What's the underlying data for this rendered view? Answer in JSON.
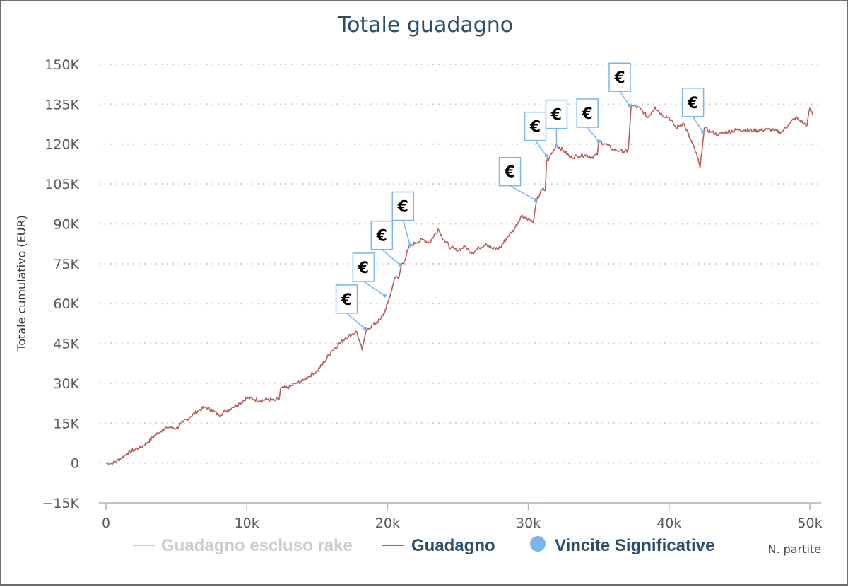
{
  "chart_data": {
    "type": "line",
    "title": "Totale guadagno",
    "xlabel": "N. partite",
    "ylabel": "Totale cumulativo (EUR)",
    "xlim": [
      -500,
      50300
    ],
    "ylim": [
      -15000,
      150000
    ],
    "x_ticks": [
      0,
      10000,
      20000,
      30000,
      40000,
      50000
    ],
    "x_tick_labels": [
      "0",
      "10k",
      "20k",
      "30k",
      "40k",
      "50k"
    ],
    "y_ticks": [
      -15000,
      0,
      15000,
      30000,
      45000,
      60000,
      75000,
      90000,
      105000,
      120000,
      135000,
      150000
    ],
    "y_tick_labels": [
      "−15K",
      "0",
      "15K",
      "30K",
      "45K",
      "60K",
      "75K",
      "90K",
      "105K",
      "120K",
      "135K",
      "150K"
    ],
    "grid": "horizontal dotted",
    "legend_position": "bottom",
    "series": [
      {
        "name": "Guadagno escluso rake",
        "color": "#cccccc",
        "visible": false,
        "x": [],
        "y": []
      },
      {
        "name": "Guadagno",
        "color": "#b85c5c",
        "x": [
          0,
          500,
          1000,
          1500,
          2000,
          2500,
          3000,
          3500,
          4000,
          4500,
          5000,
          5500,
          6000,
          6500,
          7000,
          7500,
          8000,
          8500,
          9000,
          9500,
          10000,
          10500,
          11000,
          11500,
          12000,
          12300,
          12400,
          13000,
          13500,
          14000,
          14500,
          15000,
          15500,
          16000,
          16500,
          17000,
          17500,
          17800,
          18000,
          18200,
          18400,
          18600,
          19000,
          19500,
          19900,
          20000,
          20300,
          20500,
          20800,
          21000,
          21200,
          21500,
          22000,
          22500,
          23000,
          23600,
          24000,
          24500,
          25000,
          25500,
          26000,
          26500,
          27000,
          27500,
          28000,
          28500,
          29000,
          29500,
          30000,
          30300,
          30400,
          30600,
          31000,
          31200,
          31300,
          31500,
          32000,
          32500,
          33000,
          33500,
          34000,
          34500,
          34900,
          35000,
          35500,
          36000,
          36500,
          37000,
          37100,
          37300,
          37500,
          38000,
          38500,
          39000,
          39500,
          40000,
          40500,
          41000,
          41500,
          42000,
          42200,
          42400,
          42500,
          43000,
          43500,
          44000,
          45000,
          46000,
          47000,
          47500,
          48000,
          48500,
          49000,
          49500,
          49800,
          50000,
          50200
        ],
        "y": [
          0,
          0,
          1500,
          3500,
          5000,
          6000,
          8000,
          10500,
          12500,
          13500,
          13000,
          15500,
          17500,
          19500,
          21000,
          20000,
          18000,
          19500,
          21000,
          22500,
          24500,
          24000,
          23500,
          24000,
          23500,
          24000,
          28000,
          28500,
          30000,
          31000,
          33000,
          34500,
          38000,
          42000,
          44500,
          47000,
          48500,
          49500,
          46000,
          42500,
          48000,
          50500,
          52000,
          54000,
          58000,
          60000,
          65000,
          70000,
          69500,
          75000,
          76000,
          81000,
          83000,
          84000,
          83000,
          88000,
          84000,
          81000,
          80000,
          81500,
          79000,
          81000,
          82500,
          80500,
          81000,
          85000,
          88000,
          93000,
          92000,
          90500,
          92000,
          99000,
          103000,
          102500,
          113500,
          115000,
          119500,
          117500,
          115000,
          115500,
          116000,
          115000,
          116000,
          121000,
          120000,
          118000,
          117500,
          117000,
          118000,
          134000,
          134500,
          133000,
          130000,
          134000,
          131000,
          130000,
          126000,
          128000,
          122000,
          115500,
          111000,
          121000,
          126000,
          124500,
          123500,
          124500,
          125500,
          125000,
          125500,
          125000,
          124500,
          127500,
          130000,
          128000,
          127000,
          133500,
          131000
        ]
      },
      {
        "name": "Vincite Significative",
        "color": "#7cb5ec",
        "marker": "€",
        "x": [
          18400,
          19800,
          20900,
          21600,
          31300,
          32000,
          30500,
          35000,
          37200,
          42400
        ],
        "y": [
          50500,
          63000,
          74500,
          82000,
          115500,
          119500,
          99000,
          121000,
          134500,
          124500
        ]
      }
    ]
  }
}
